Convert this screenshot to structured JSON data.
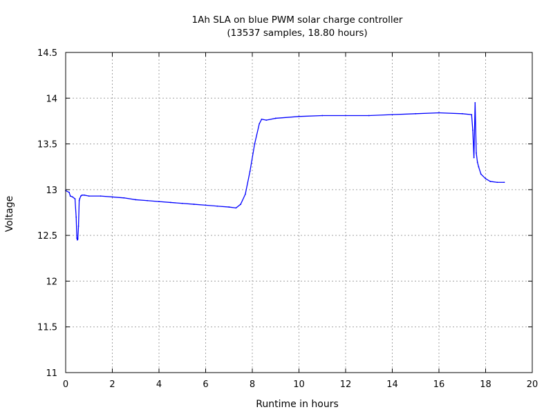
{
  "chart_data": {
    "type": "line",
    "title": "1Ah SLA on blue PWM solar charge controller",
    "subtitle": "(13537 samples, 18.80 hours)",
    "xlabel": "Runtime in hours",
    "ylabel": "Voltage",
    "xlim": [
      0,
      20
    ],
    "ylim": [
      11,
      14.5
    ],
    "x_ticks": [
      0,
      2,
      4,
      6,
      8,
      10,
      12,
      14,
      16,
      18,
      20
    ],
    "y_ticks": [
      11,
      11.5,
      12,
      12.5,
      13,
      13.5,
      14,
      14.5
    ],
    "x_tick_labels": [
      "0",
      "2",
      "4",
      "6",
      "8",
      "10",
      "12",
      "14",
      "16",
      "18",
      "20"
    ],
    "y_tick_labels": [
      "11",
      "11.5",
      "12",
      "12.5",
      "13",
      "13.5",
      "14",
      "14.5"
    ],
    "grid": true,
    "legend": "none",
    "series": [
      {
        "color": "#0000ff",
        "x": [
          0.0,
          0.15,
          0.2,
          0.3,
          0.4,
          0.45,
          0.48,
          0.5,
          0.52,
          0.55,
          0.58,
          0.6,
          0.65,
          0.7,
          0.8,
          1.0,
          1.5,
          2.0,
          2.5,
          3.0,
          3.5,
          4.0,
          4.5,
          5.0,
          5.5,
          6.0,
          6.5,
          7.0,
          7.3,
          7.5,
          7.7,
          7.9,
          8.1,
          8.3,
          8.4,
          8.6,
          9.0,
          10.0,
          11.0,
          12.0,
          13.0,
          14.0,
          15.0,
          16.0,
          17.0,
          17.4,
          17.45,
          17.5,
          17.55,
          17.6,
          17.65,
          17.7,
          17.8,
          18.0,
          18.2,
          18.5,
          18.8
        ],
        "y": [
          12.99,
          12.97,
          12.93,
          12.92,
          12.9,
          12.7,
          12.47,
          12.45,
          12.46,
          12.6,
          12.88,
          12.9,
          12.93,
          12.94,
          12.94,
          12.93,
          12.93,
          12.92,
          12.91,
          12.89,
          12.88,
          12.87,
          12.86,
          12.85,
          12.84,
          12.83,
          12.82,
          12.81,
          12.8,
          12.84,
          12.95,
          13.2,
          13.5,
          13.72,
          13.77,
          13.76,
          13.78,
          13.8,
          13.81,
          13.81,
          13.81,
          13.82,
          13.83,
          13.84,
          13.83,
          13.82,
          13.65,
          13.35,
          13.95,
          13.4,
          13.3,
          13.25,
          13.17,
          13.12,
          13.09,
          13.08,
          13.08
        ]
      }
    ]
  }
}
